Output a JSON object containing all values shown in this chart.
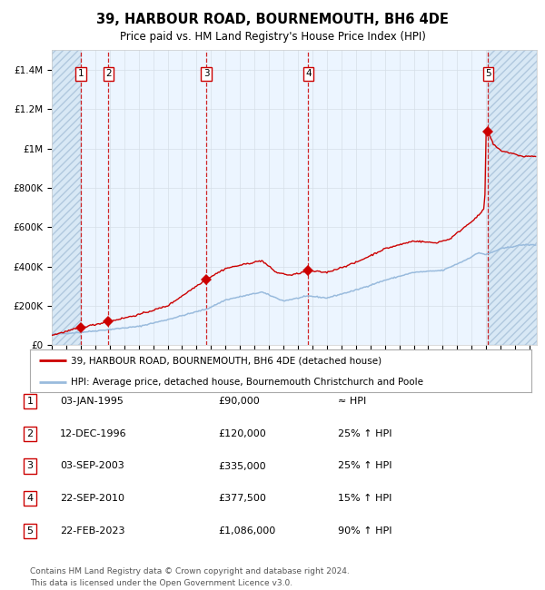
{
  "title": "39, HARBOUR ROAD, BOURNEMOUTH, BH6 4DE",
  "subtitle": "Price paid vs. HM Land Registry's House Price Index (HPI)",
  "sale_prices": [
    90000,
    120000,
    335000,
    377500,
    1086000
  ],
  "sale_labels": [
    "1",
    "2",
    "3",
    "4",
    "5"
  ],
  "table_data": [
    [
      "1",
      "03-JAN-1995",
      "£90,000",
      "≈ HPI"
    ],
    [
      "2",
      "12-DEC-1996",
      "£120,000",
      "25% ↑ HPI"
    ],
    [
      "3",
      "03-SEP-2003",
      "£335,000",
      "25% ↑ HPI"
    ],
    [
      "4",
      "22-SEP-2010",
      "£377,500",
      "15% ↑ HPI"
    ],
    [
      "5",
      "22-FEB-2023",
      "£1,086,000",
      "90% ↑ HPI"
    ]
  ],
  "legend_entries": [
    "39, HARBOUR ROAD, BOURNEMOUTH, BH6 4DE (detached house)",
    "HPI: Average price, detached house, Bournemouth Christchurch and Poole"
  ],
  "footer": "Contains HM Land Registry data © Crown copyright and database right 2024.\nThis data is licensed under the Open Government Licence v3.0.",
  "ylim": [
    0,
    1500000
  ],
  "price_line_color": "#cc0000",
  "hpi_line_color": "#99bbdd",
  "sale_marker_color": "#cc0000",
  "dashed_line_color": "#cc0000",
  "shade_color": "#ddeeff",
  "hatch_color": "#aabbcc",
  "grid_color": "#cccccc",
  "bg_color": "#ffffff",
  "sale_year_decimals": [
    1995.01,
    1996.92,
    2003.67,
    2010.72,
    2023.14
  ],
  "xmin": 1993.0,
  "xmax": 2026.5
}
